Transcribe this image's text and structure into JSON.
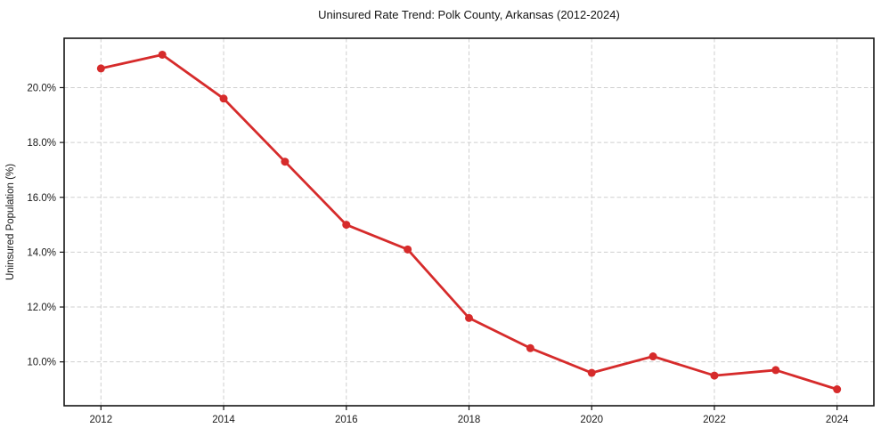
{
  "chart_data": {
    "type": "line",
    "title": "Uninsured Rate Trend: Polk County, Arkansas (2012-2024)",
    "xlabel": "",
    "ylabel": "Uninsured Population (%)",
    "x": [
      2012,
      2013,
      2014,
      2015,
      2016,
      2017,
      2018,
      2019,
      2020,
      2021,
      2022,
      2023,
      2024
    ],
    "series": [
      {
        "name": "Uninsured Population (%)",
        "values": [
          20.7,
          21.2,
          19.6,
          17.3,
          15.0,
          14.1,
          11.6,
          10.5,
          9.6,
          10.2,
          9.5,
          9.7,
          9.0
        ]
      }
    ],
    "x_ticks": [
      2012,
      2014,
      2016,
      2018,
      2020,
      2022,
      2024
    ],
    "y_ticks": [
      10,
      12,
      14,
      16,
      18,
      20
    ],
    "y_tick_decimals": 1,
    "y_tick_suffix": "%",
    "xlim": [
      2011.4,
      2024.6
    ],
    "ylim": [
      8.4,
      21.8
    ],
    "grid": true,
    "grid_style": "dashed",
    "legend": false,
    "line_color": "#d62b2b",
    "marker": "circle",
    "marker_color": "#d62b2b"
  },
  "style": {
    "background": "#ffffff",
    "grid_color": "#cfcfcf",
    "spine_color": "#141414",
    "tick_color": "#141414",
    "text_color": "#1a1a1a",
    "line_width": 2.8,
    "marker_radius": 4.5
  }
}
